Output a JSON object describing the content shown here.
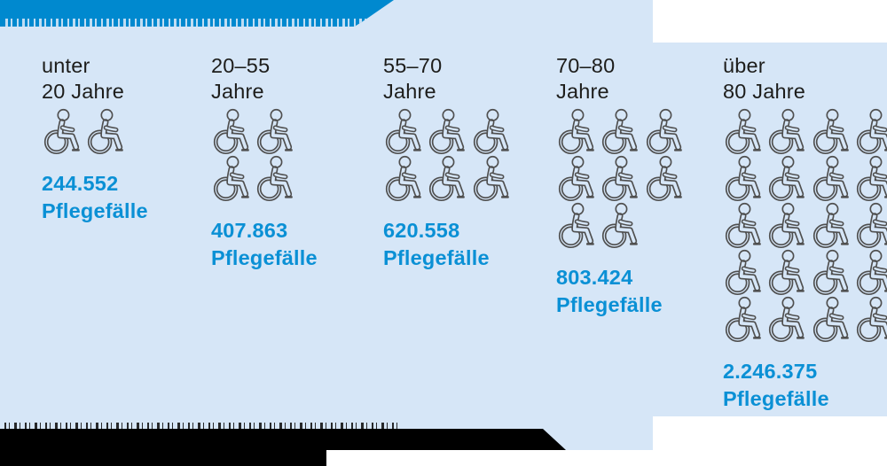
{
  "colors": {
    "panel_bg": "#d6e6f7",
    "title_bar": "#0089cf",
    "value_text": "#0a90d5",
    "label_text": "#1d1d1b",
    "icon_stroke": "#4f4f4f",
    "cut_bg": "#000000"
  },
  "columns": [
    {
      "label_line1": "unter",
      "label_line2": "20 Jahre",
      "value": "244.552",
      "unit": "Pflegefälle",
      "icon_rows": [
        2
      ]
    },
    {
      "label_line1": "20–55",
      "label_line2": "Jahre",
      "value": "407.863",
      "unit": "Pflegefälle",
      "icon_rows": [
        2,
        2
      ]
    },
    {
      "label_line1": "55–70",
      "label_line2": "Jahre",
      "value": "620.558",
      "unit": "Pflegefälle",
      "icon_rows": [
        3,
        3
      ]
    },
    {
      "label_line1": "70–80",
      "label_line2": "Jahre",
      "value": "803.424",
      "unit": "Pflegefälle",
      "icon_rows": [
        3,
        3,
        2
      ]
    },
    {
      "label_line1": "über",
      "label_line2": "80 Jahre",
      "value": "2.246.375",
      "unit": "Pflegefälle",
      "icon_rows": [
        4,
        4,
        4,
        4,
        4
      ]
    }
  ],
  "chart_data": {
    "type": "pictogram",
    "icon": "wheelchair",
    "categories": [
      "unter 20 Jahre",
      "20–55 Jahre",
      "55–70 Jahre",
      "70–80 Jahre",
      "über 80 Jahre"
    ],
    "values": [
      244552,
      407863,
      620558,
      803424,
      2246375
    ],
    "value_labels": [
      "244.552",
      "407.863",
      "620.558",
      "803.424",
      "2.246.375"
    ],
    "unit": "Pflegefälle",
    "icon_counts": [
      2,
      4,
      6,
      8,
      20
    ],
    "legend_position": "none",
    "grid": false
  }
}
